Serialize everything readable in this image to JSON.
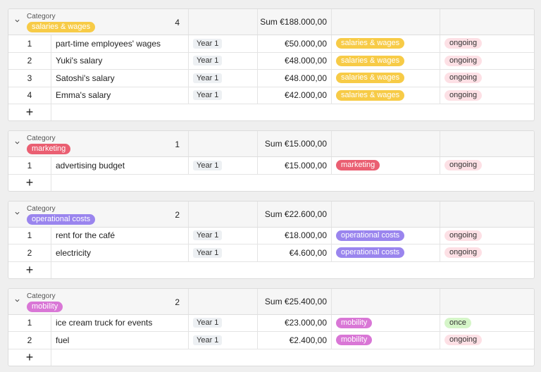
{
  "groups": [
    {
      "field_label": "Category",
      "name": "salaries & wages",
      "color": "#f7cb47",
      "count": 4,
      "sum": "Sum €188.000,00",
      "rows": [
        {
          "index": 1,
          "name": "part-time employees' wages",
          "year": "Year 1",
          "amount": "€50.000,00",
          "category": "salaries & wages",
          "status": "ongoing",
          "status_color": "#fde0e5"
        },
        {
          "index": 2,
          "name": "Yuki's salary",
          "year": "Year 1",
          "amount": "€48.000,00",
          "category": "salaries & wages",
          "status": "ongoing",
          "status_color": "#fde0e5"
        },
        {
          "index": 3,
          "name": "Satoshi's salary",
          "year": "Year 1",
          "amount": "€48.000,00",
          "category": "salaries & wages",
          "status": "ongoing",
          "status_color": "#fde0e5"
        },
        {
          "index": 4,
          "name": "Emma's salary",
          "year": "Year 1",
          "amount": "€42.000,00",
          "category": "salaries & wages",
          "status": "ongoing",
          "status_color": "#fde0e5"
        }
      ]
    },
    {
      "field_label": "Category",
      "name": "marketing",
      "color": "#ea5f72",
      "count": 1,
      "sum": "Sum €15.000,00",
      "rows": [
        {
          "index": 1,
          "name": "advertising budget",
          "year": "Year 1",
          "amount": "€15.000,00",
          "category": "marketing",
          "status": "ongoing",
          "status_color": "#fde0e5"
        }
      ]
    },
    {
      "field_label": "Category",
      "name": "operational costs",
      "color": "#9a85ee",
      "count": 2,
      "sum": "Sum €22.600,00",
      "rows": [
        {
          "index": 1,
          "name": "rent for the café",
          "year": "Year 1",
          "amount": "€18.000,00",
          "category": "operational costs",
          "status": "ongoing",
          "status_color": "#fde0e5"
        },
        {
          "index": 2,
          "name": "electricity",
          "year": "Year 1",
          "amount": "€4.600,00",
          "category": "operational costs",
          "status": "ongoing",
          "status_color": "#fde0e5"
        }
      ]
    },
    {
      "field_label": "Category",
      "name": "mobility",
      "color": "#d977d6",
      "count": 2,
      "sum": "Sum €25.400,00",
      "rows": [
        {
          "index": 1,
          "name": "ice cream truck for events",
          "year": "Year 1",
          "amount": "€23.000,00",
          "category": "mobility",
          "status": "once",
          "status_color": "#d5f5c8"
        },
        {
          "index": 2,
          "name": "fuel",
          "year": "Year 1",
          "amount": "€2.400,00",
          "category": "mobility",
          "status": "ongoing",
          "status_color": "#fde0e5"
        }
      ]
    }
  ]
}
